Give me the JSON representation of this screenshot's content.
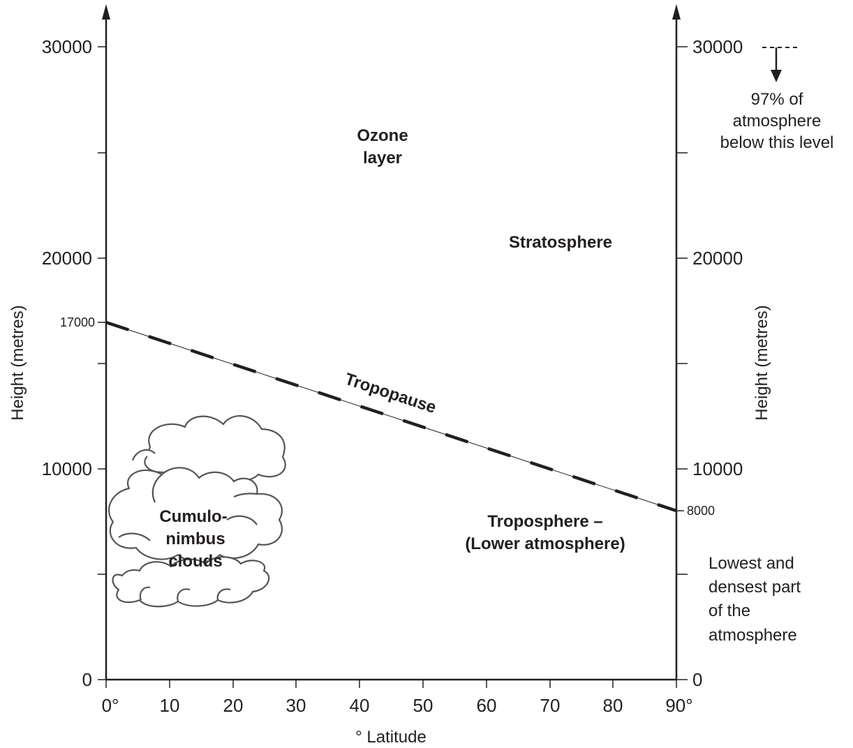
{
  "left_axis": {
    "title": "Height (metres)",
    "ticks": [
      "30000",
      "20000",
      "10000",
      "0"
    ],
    "marker": "17000"
  },
  "right_axis": {
    "title": "Height (metres)",
    "ticks": [
      "30000",
      "20000",
      "10000",
      "0"
    ],
    "marker": "8000"
  },
  "x_axis": {
    "title": "° Latitude",
    "ticks": [
      "0°",
      "10",
      "20",
      "30",
      "40",
      "50",
      "60",
      "70",
      "80",
      "90°"
    ]
  },
  "labels": {
    "ozone_line1": "Ozone",
    "ozone_line2": "layer",
    "stratosphere": "Stratosphere",
    "tropopause": "Tropopause",
    "troposphere_line1": "Troposphere –",
    "troposphere_line2": "(Lower atmosphere)",
    "cloud_line1": "Cumulo-",
    "cloud_line2": "nimbus",
    "cloud_line3": "clouds"
  },
  "notes": {
    "top_right": [
      "97% of",
      "atmosphere",
      "below this level"
    ],
    "bottom_right": [
      "Lowest and",
      "densest part",
      "of the",
      "atmosphere"
    ]
  },
  "tropopause_data": {
    "start": {
      "latitude": 0,
      "height": 17000
    },
    "end": {
      "latitude": 90,
      "height": 8000
    }
  }
}
